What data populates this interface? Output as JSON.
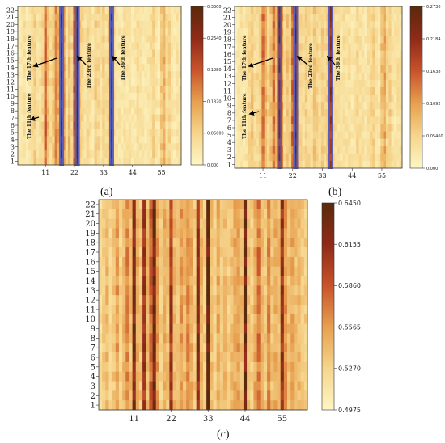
{
  "figure": {
    "panel_labels": [
      "(a)",
      "(b)",
      "(c)"
    ],
    "annotations_a": [
      "The 17th feature",
      "The 11th feature",
      "The 23rd feature",
      "The 36th feature"
    ],
    "annotations_b": [
      "The 17th feature",
      "The 11th feature",
      "The 23rd feature",
      "The 36th feature"
    ]
  },
  "chart_data": [
    {
      "type": "heatmap",
      "panel": "(a)",
      "x_ticks": [
        11,
        22,
        33,
        44,
        55
      ],
      "y_ticks": [
        1,
        2,
        3,
        4,
        5,
        6,
        7,
        8,
        9,
        10,
        11,
        12,
        13,
        14,
        15,
        16,
        17,
        18,
        19,
        20,
        21,
        22
      ],
      "n_rows": 22,
      "n_cols": 62,
      "colorbar": {
        "min": 0.0,
        "max": 0.33,
        "ticks": [
          "0.000",
          "0.06600",
          "0.1320",
          "0.1980",
          "0.2640",
          "0.3300"
        ]
      },
      "colormap": [
        "#fdf6c4",
        "#f6d58c",
        "#e7a04f",
        "#c8532b",
        "#8f2a18",
        "#5a2a0c"
      ],
      "highlighted_columns": [
        17,
        23,
        36
      ],
      "column_intensity": [
        0.05,
        0.08,
        0.14,
        0.07,
        0.1,
        0.18,
        0.22,
        0.12,
        0.15,
        0.2,
        0.55,
        0.3,
        0.18,
        0.25,
        0.45,
        0.35,
        0.85,
        0.4,
        0.15,
        0.3,
        0.2,
        0.6,
        0.95,
        0.25,
        0.18,
        0.12,
        0.2,
        0.15,
        0.1,
        0.22,
        0.18,
        0.12,
        0.2,
        0.15,
        0.22,
        0.8,
        0.18,
        0.12,
        0.1,
        0.08,
        0.14,
        0.1,
        0.12,
        0.08,
        0.1,
        0.15,
        0.12,
        0.1,
        0.08,
        0.12,
        0.15,
        0.2,
        0.1,
        0.08,
        0.25,
        0.35,
        0.15,
        0.2,
        0.1,
        0.08,
        0.12,
        0.1
      ]
    },
    {
      "type": "heatmap",
      "panel": "(b)",
      "x_ticks": [
        11,
        22,
        33,
        44,
        55
      ],
      "y_ticks": [
        1,
        2,
        3,
        4,
        5,
        6,
        7,
        8,
        9,
        10,
        11,
        12,
        13,
        14,
        15,
        16,
        17,
        18,
        19,
        20,
        21,
        22
      ],
      "n_rows": 22,
      "n_cols": 62,
      "colorbar": {
        "min": 0.0,
        "max": 0.273,
        "ticks": [
          "0.000",
          "0.05460",
          "0.1092",
          "0.1638",
          "0.2184",
          "0.2730"
        ]
      },
      "colormap": [
        "#fdf6c4",
        "#f6d58c",
        "#e7a04f",
        "#c8532b",
        "#8f2a18",
        "#5a2a0c"
      ],
      "highlighted_columns": [
        17,
        23,
        36
      ],
      "column_intensity": [
        0.06,
        0.1,
        0.12,
        0.08,
        0.12,
        0.2,
        0.25,
        0.15,
        0.18,
        0.22,
        0.5,
        0.32,
        0.2,
        0.28,
        0.48,
        0.3,
        0.8,
        0.42,
        0.18,
        0.28,
        0.22,
        0.55,
        0.9,
        0.28,
        0.2,
        0.15,
        0.22,
        0.18,
        0.12,
        0.25,
        0.2,
        0.15,
        0.22,
        0.18,
        0.25,
        0.75,
        0.2,
        0.14,
        0.12,
        0.1,
        0.15,
        0.12,
        0.14,
        0.1,
        0.12,
        0.18,
        0.14,
        0.12,
        0.1,
        0.14,
        0.18,
        0.22,
        0.12,
        0.1,
        0.28,
        0.38,
        0.18,
        0.22,
        0.12,
        0.1,
        0.14,
        0.12
      ]
    },
    {
      "type": "heatmap",
      "panel": "(c)",
      "x_ticks": [
        11,
        22,
        33,
        44,
        55
      ],
      "y_ticks": [
        1,
        2,
        3,
        4,
        5,
        6,
        7,
        8,
        9,
        10,
        11,
        12,
        13,
        14,
        15,
        16,
        17,
        18,
        19,
        20,
        21,
        22
      ],
      "n_rows": 22,
      "n_cols": 62,
      "colorbar": {
        "min": 0.4975,
        "max": 0.645,
        "ticks": [
          "0.4975",
          "0.5270",
          "0.5565",
          "0.5860",
          "0.6155",
          "0.6450"
        ]
      },
      "colormap": [
        "#fdf6c4",
        "#f6d58c",
        "#e7a04f",
        "#c8532b",
        "#8f2a18",
        "#5a2a0c"
      ],
      "highlighted_columns": [],
      "column_intensity": [
        0.15,
        0.22,
        0.3,
        0.18,
        0.25,
        0.4,
        0.2,
        0.3,
        0.45,
        0.28,
        0.85,
        0.35,
        0.25,
        0.75,
        0.3,
        0.55,
        0.92,
        0.4,
        0.22,
        0.35,
        0.28,
        0.7,
        0.3,
        0.25,
        0.4,
        0.3,
        0.45,
        0.35,
        0.25,
        0.8,
        0.3,
        0.22,
        0.95,
        0.28,
        0.2,
        0.35,
        0.25,
        0.3,
        0.22,
        0.28,
        0.35,
        0.4,
        0.3,
        0.9,
        0.28,
        0.22,
        0.35,
        0.5,
        0.3,
        0.25,
        0.45,
        0.28,
        0.35,
        0.3,
        0.75,
        0.4,
        0.3,
        0.35,
        0.28,
        0.3,
        0.25,
        0.22
      ]
    }
  ]
}
